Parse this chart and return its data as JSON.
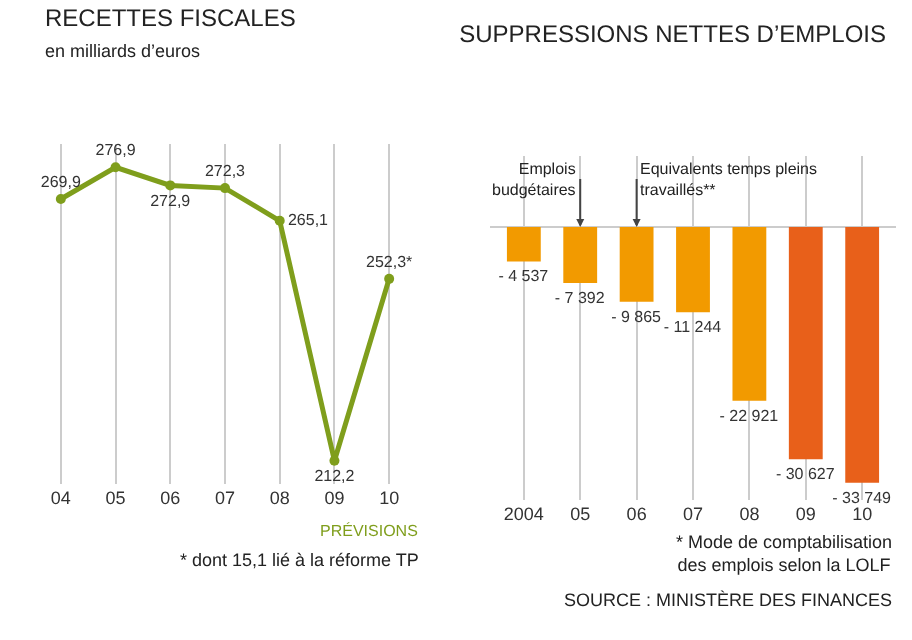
{
  "chart_data": [
    {
      "type": "line",
      "title": "RECETTES FISCALES",
      "subtitle": "en milliards d’euros",
      "categories": [
        "04",
        "05",
        "06",
        "07",
        "08",
        "09",
        "10"
      ],
      "series": [
        {
          "color": "#7f9e1c",
          "values": [
            269.9,
            276.9,
            272.9,
            272.3,
            265.1,
            212.2,
            252.3
          ],
          "value_labels": [
            "269,9",
            "276,9",
            "272,9",
            "272,3",
            "265,1",
            "212,2",
            "252,3*"
          ]
        }
      ],
      "marker": "circle",
      "line_style": "solid",
      "grid": "x",
      "annotations": [
        "PRÉVISIONS",
        "* dont 15,1 lié à la réforme TP"
      ]
    },
    {
      "type": "bar",
      "title": "SUPPRESSIONS NETTES D’EMPLOIS",
      "categories": [
        "2004",
        "05",
        "06",
        "07",
        "08",
        "09",
        "10"
      ],
      "values": [
        -4537,
        -7392,
        -9865,
        -11244,
        -22921,
        -30627,
        -33749
      ],
      "colors": [
        "#f29a00",
        "#f29a00",
        "#f29a00",
        "#f29a00",
        "#f29a00",
        "#e8601a",
        "#e8601a"
      ],
      "value_labels": [
        "- 4 537",
        "- 7 392",
        "- 9 865",
        "- 11 244",
        "- 22 921",
        "- 30 627",
        "- 33 749"
      ],
      "grid": "x",
      "annotations": [
        {
          "text": "Emplois budgétaires",
          "x": "05",
          "y": 0
        },
        {
          "text": "Equivalents temps pleins travaillés**",
          "x": "06",
          "y": 0
        },
        "* Mode de comptabilisation des emplois selon la LOLF",
        "SOURCE : MINISTÈRE DES FINANCES"
      ]
    }
  ]
}
